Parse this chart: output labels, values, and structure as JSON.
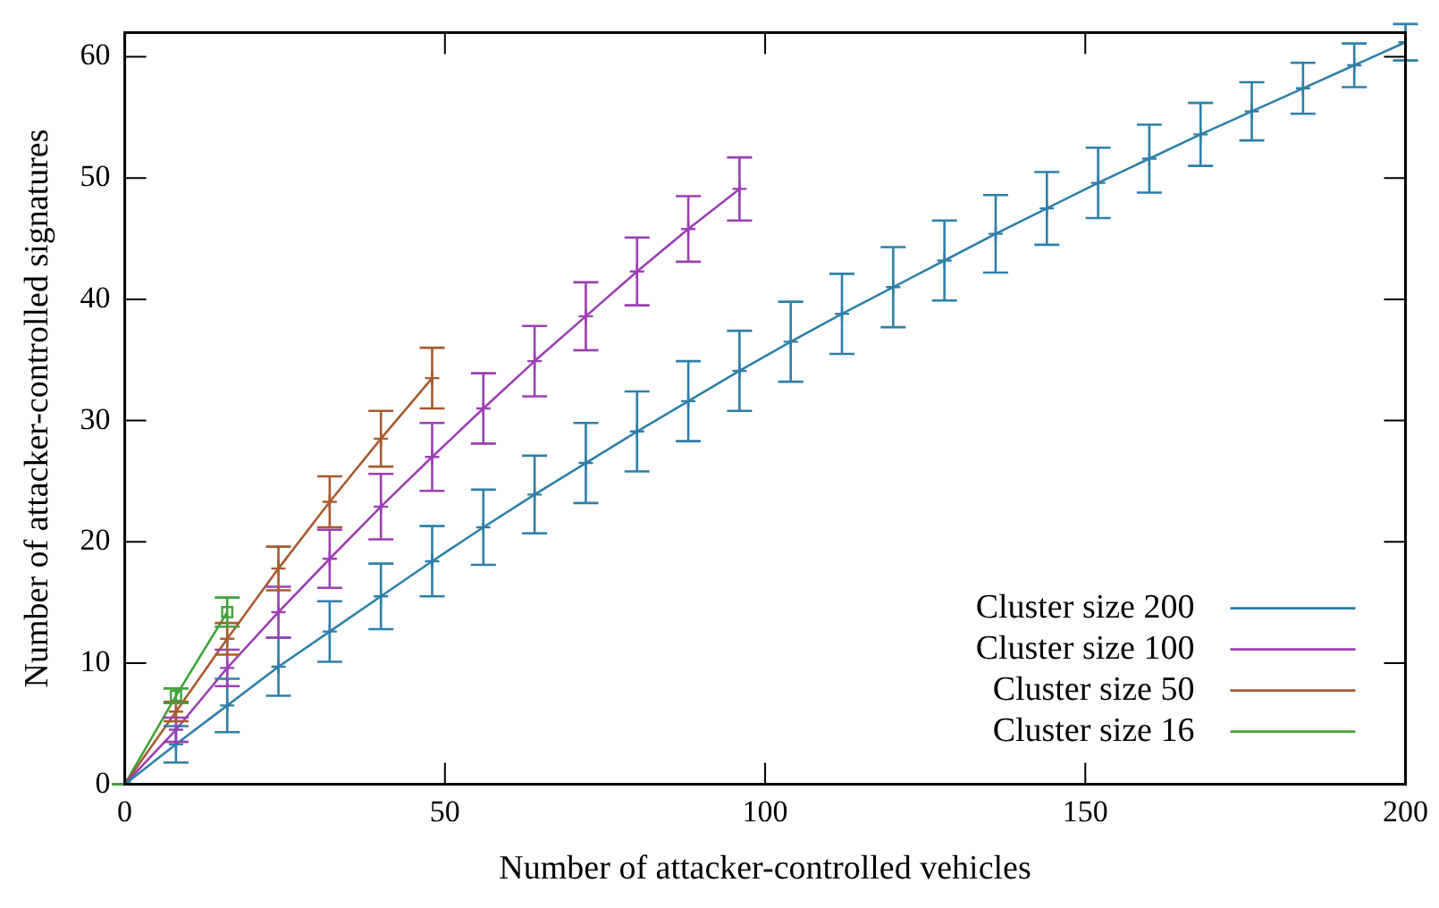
{
  "chart_data": {
    "type": "line",
    "xlabel": "Number of attacker-controlled vehicles",
    "ylabel": "Number of attacker-controlled signatures",
    "xlim": [
      0,
      200
    ],
    "xticks": [
      0,
      50,
      100,
      150,
      200
    ],
    "ylim": [
      0,
      62
    ],
    "yticks": [
      0,
      10,
      20,
      30,
      40,
      50,
      60
    ],
    "grid": false,
    "legend": "bottom right",
    "line_style": "solid",
    "series": [
      {
        "name": "Cluster size 200",
        "color": "#2e7fa8",
        "marker": "cross",
        "x": [
          0,
          8,
          16,
          24,
          32,
          40,
          48,
          56,
          64,
          72,
          80,
          88,
          96,
          104,
          112,
          120,
          128,
          136,
          144,
          152,
          160,
          168,
          176,
          184,
          192,
          200
        ],
        "values": [
          0,
          3.3,
          6.5,
          9.7,
          12.6,
          15.5,
          18.4,
          21.2,
          23.9,
          26.5,
          29.1,
          31.6,
          34.1,
          36.5,
          38.8,
          41.0,
          43.2,
          45.4,
          47.5,
          49.6,
          51.6,
          53.6,
          55.5,
          57.4,
          59.3,
          61.2
        ],
        "errors": [
          0,
          1.5,
          2.2,
          2.4,
          2.5,
          2.7,
          2.9,
          3.1,
          3.2,
          3.3,
          3.3,
          3.3,
          3.3,
          3.3,
          3.3,
          3.3,
          3.3,
          3.2,
          3.0,
          2.9,
          2.8,
          2.6,
          2.4,
          2.1,
          1.8,
          1.5
        ]
      },
      {
        "name": "Cluster size 100",
        "color": "#9b3fb5",
        "marker": "cross",
        "x": [
          0,
          8,
          16,
          24,
          32,
          40,
          48,
          56,
          64,
          72,
          80,
          88,
          96
        ],
        "values": [
          0,
          4.5,
          9.6,
          14.2,
          18.6,
          22.9,
          27.0,
          31.0,
          34.9,
          38.6,
          42.3,
          45.8,
          49.1
        ],
        "errors": [
          0,
          1.0,
          1.5,
          2.1,
          2.4,
          2.7,
          2.8,
          2.9,
          2.9,
          2.8,
          2.8,
          2.7,
          2.6
        ]
      },
      {
        "name": "Cluster size 50",
        "color": "#a85a30",
        "marker": "cross",
        "x": [
          0,
          8,
          16,
          24,
          32,
          40,
          48
        ],
        "values": [
          0,
          6.0,
          12.0,
          17.8,
          23.3,
          28.5,
          33.5
        ],
        "errors": [
          0,
          0.8,
          1.3,
          1.8,
          2.1,
          2.3,
          2.5
        ]
      },
      {
        "name": "Cluster size 16",
        "color": "#3fa33a",
        "marker": "square",
        "x": [
          0,
          8,
          16
        ],
        "values": [
          0,
          7.3,
          14.2
        ],
        "errors": [
          0,
          0.6,
          1.2
        ]
      }
    ]
  }
}
